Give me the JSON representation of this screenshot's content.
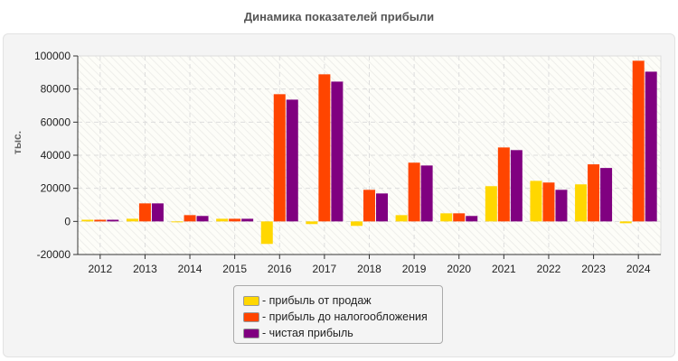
{
  "chart_data": {
    "type": "bar",
    "title": "Динамика показателей прибыли",
    "ylabel": "тыс.",
    "xlabel": "",
    "ylim": [
      -20000,
      100000
    ],
    "yticks": [
      -20000,
      0,
      20000,
      40000,
      60000,
      80000,
      100000
    ],
    "grid": true,
    "legend_position": "bottom",
    "categories": [
      "2012",
      "2013",
      "2014",
      "2015",
      "2016",
      "2017",
      "2018",
      "2019",
      "2020",
      "2021",
      "2022",
      "2023",
      "2024"
    ],
    "series": [
      {
        "name": "прибыль от продаж",
        "color": "#ffd700",
        "values": [
          1000,
          1600,
          -500,
          1600,
          -13600,
          -1600,
          -2700,
          3800,
          4900,
          21300,
          24500,
          22400,
          -1100
        ]
      },
      {
        "name": "прибыль до налогообложения",
        "color": "#ff4500",
        "values": [
          1000,
          10900,
          3800,
          1600,
          76900,
          88900,
          19100,
          35500,
          4900,
          44700,
          23500,
          34500,
          97100
        ]
      },
      {
        "name": "чистая прибыль",
        "color": "#800080",
        "values": [
          1000,
          10900,
          3300,
          1600,
          73600,
          84500,
          16900,
          33800,
          3300,
          43100,
          19100,
          32300,
          90500
        ]
      }
    ]
  }
}
